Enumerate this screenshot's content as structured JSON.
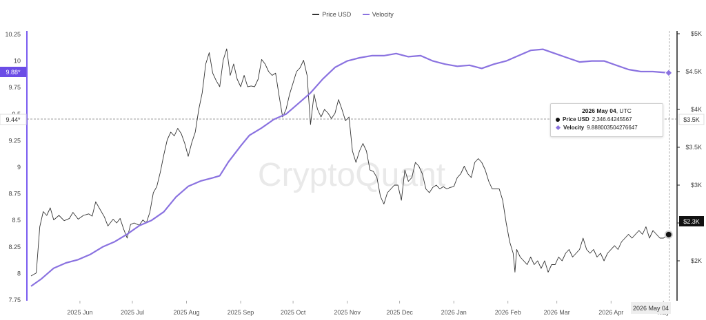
{
  "legend": {
    "price_label": "Price USD",
    "velocity_label": "Velocity",
    "price_color": "#333333",
    "velocity_color": "#8a72e0"
  },
  "watermark": "CryptoQuant",
  "tooltip": {
    "date_bold": "2026 May 04",
    "date_suffix": ", UTC",
    "price_label": "Price USD",
    "price_value": "2,346.64245567",
    "velocity_label": "Velocity",
    "velocity_value": "9.888003504276647"
  },
  "left_axis_markers": {
    "velocity_current": "9.88*",
    "crosshair": "9.44*"
  },
  "right_axis_markers": {
    "price_current": "$2.3K",
    "crosshair": "$3.5K"
  },
  "x_axis_date_badge": "2026 May 04",
  "chart_data": {
    "type": "line",
    "x_ticks": [
      "2025 Jun",
      "2025 Jul",
      "2025 Aug",
      "2025 Sep",
      "2025 Oct",
      "2025 Nov",
      "2025 Dec",
      "2026 Jan",
      "2026 Feb",
      "2026 Mar",
      "2026 Apr",
      "May"
    ],
    "y_left": {
      "ticks": [
        "7.75",
        "8",
        "8.25",
        "8.5",
        "8.75",
        "9",
        "9.25",
        "9.5",
        "9.75",
        "10",
        "10.25"
      ],
      "min": 7.75,
      "max": 10.25
    },
    "y_right": {
      "ticks": [
        "$2K",
        "$2.5K",
        "$3K",
        "$3.5K",
        "$4K",
        "$4.5K",
        "$5K"
      ],
      "min": 1500,
      "max": 5000
    },
    "series": [
      {
        "name": "Price USD",
        "axis": "right",
        "color": "#333333",
        "points": [
          [
            "2025-05-04",
            1800
          ],
          [
            "2025-05-07",
            1840
          ],
          [
            "2025-05-09",
            2450
          ],
          [
            "2025-05-11",
            2650
          ],
          [
            "2025-05-13",
            2600
          ],
          [
            "2025-05-15",
            2700
          ],
          [
            "2025-05-17",
            2540
          ],
          [
            "2025-05-20",
            2600
          ],
          [
            "2025-05-23",
            2530
          ],
          [
            "2025-05-26",
            2560
          ],
          [
            "2025-05-28",
            2640
          ],
          [
            "2025-05-31",
            2550
          ],
          [
            "2025-06-03",
            2600
          ],
          [
            "2025-06-06",
            2620
          ],
          [
            "2025-06-08",
            2590
          ],
          [
            "2025-06-10",
            2780
          ],
          [
            "2025-06-12",
            2700
          ],
          [
            "2025-06-15",
            2580
          ],
          [
            "2025-06-17",
            2460
          ],
          [
            "2025-06-20",
            2550
          ],
          [
            "2025-06-22",
            2500
          ],
          [
            "2025-06-24",
            2560
          ],
          [
            "2025-06-26",
            2420
          ],
          [
            "2025-06-28",
            2300
          ],
          [
            "2025-06-30",
            2480
          ],
          [
            "2025-07-02",
            2500
          ],
          [
            "2025-07-05",
            2470
          ],
          [
            "2025-07-07",
            2540
          ],
          [
            "2025-07-09",
            2500
          ],
          [
            "2025-07-11",
            2640
          ],
          [
            "2025-07-13",
            2900
          ],
          [
            "2025-07-15",
            2980
          ],
          [
            "2025-07-17",
            3170
          ],
          [
            "2025-07-19",
            3400
          ],
          [
            "2025-07-21",
            3600
          ],
          [
            "2025-07-23",
            3700
          ],
          [
            "2025-07-25",
            3650
          ],
          [
            "2025-07-27",
            3750
          ],
          [
            "2025-07-29",
            3680
          ],
          [
            "2025-07-31",
            3550
          ],
          [
            "2025-08-02",
            3380
          ],
          [
            "2025-08-04",
            3560
          ],
          [
            "2025-08-06",
            3700
          ],
          [
            "2025-08-08",
            4000
          ],
          [
            "2025-08-10",
            4220
          ],
          [
            "2025-08-12",
            4600
          ],
          [
            "2025-08-14",
            4750
          ],
          [
            "2025-08-16",
            4480
          ],
          [
            "2025-08-18",
            4380
          ],
          [
            "2025-08-20",
            4300
          ],
          [
            "2025-08-22",
            4650
          ],
          [
            "2025-08-24",
            4800
          ],
          [
            "2025-08-26",
            4450
          ],
          [
            "2025-08-28",
            4600
          ],
          [
            "2025-08-30",
            4400
          ],
          [
            "2025-09-01",
            4300
          ],
          [
            "2025-09-03",
            4450
          ],
          [
            "2025-09-05",
            4300
          ],
          [
            "2025-09-07",
            4310
          ],
          [
            "2025-09-09",
            4300
          ],
          [
            "2025-09-11",
            4400
          ],
          [
            "2025-09-13",
            4660
          ],
          [
            "2025-09-15",
            4600
          ],
          [
            "2025-09-17",
            4500
          ],
          [
            "2025-09-19",
            4450
          ],
          [
            "2025-09-21",
            4480
          ],
          [
            "2025-09-23",
            4180
          ],
          [
            "2025-09-25",
            3900
          ],
          [
            "2025-09-27",
            4000
          ],
          [
            "2025-09-29",
            4200
          ],
          [
            "2025-10-01",
            4350
          ],
          [
            "2025-10-03",
            4500
          ],
          [
            "2025-10-05",
            4550
          ],
          [
            "2025-10-07",
            4650
          ],
          [
            "2025-10-09",
            4450
          ],
          [
            "2025-10-11",
            3800
          ],
          [
            "2025-10-13",
            4200
          ],
          [
            "2025-10-15",
            4000
          ],
          [
            "2025-10-17",
            3900
          ],
          [
            "2025-10-19",
            4000
          ],
          [
            "2025-10-21",
            3950
          ],
          [
            "2025-10-23",
            3880
          ],
          [
            "2025-10-25",
            3950
          ],
          [
            "2025-10-27",
            4130
          ],
          [
            "2025-10-29",
            4000
          ],
          [
            "2025-10-31",
            3850
          ],
          [
            "2025-11-02",
            3900
          ],
          [
            "2025-11-04",
            3450
          ],
          [
            "2025-11-06",
            3300
          ],
          [
            "2025-11-08",
            3450
          ],
          [
            "2025-11-10",
            3550
          ],
          [
            "2025-11-12",
            3450
          ],
          [
            "2025-11-14",
            3200
          ],
          [
            "2025-11-16",
            3180
          ],
          [
            "2025-11-18",
            3100
          ],
          [
            "2025-11-20",
            2850
          ],
          [
            "2025-11-22",
            2750
          ],
          [
            "2025-11-24",
            2900
          ],
          [
            "2025-11-26",
            2950
          ],
          [
            "2025-11-28",
            3000
          ],
          [
            "2025-11-30",
            3000
          ],
          [
            "2025-12-02",
            2800
          ],
          [
            "2025-12-04",
            3200
          ],
          [
            "2025-12-06",
            3050
          ],
          [
            "2025-12-08",
            3100
          ],
          [
            "2025-12-10",
            3300
          ],
          [
            "2025-12-12",
            3250
          ],
          [
            "2025-12-14",
            3150
          ],
          [
            "2025-12-16",
            2950
          ],
          [
            "2025-12-18",
            2900
          ],
          [
            "2025-12-20",
            2970
          ],
          [
            "2025-12-22",
            3000
          ],
          [
            "2025-12-24",
            2950
          ],
          [
            "2025-12-26",
            2980
          ],
          [
            "2025-12-28",
            2950
          ],
          [
            "2025-12-30",
            2970
          ],
          [
            "2026-01-01",
            2980
          ],
          [
            "2026-01-03",
            3100
          ],
          [
            "2026-01-05",
            3150
          ],
          [
            "2026-01-07",
            3250
          ],
          [
            "2026-01-09",
            3150
          ],
          [
            "2026-01-11",
            3100
          ],
          [
            "2026-01-13",
            3300
          ],
          [
            "2026-01-15",
            3350
          ],
          [
            "2026-01-17",
            3300
          ],
          [
            "2026-01-19",
            3200
          ],
          [
            "2026-01-21",
            3050
          ],
          [
            "2026-01-23",
            2950
          ],
          [
            "2026-01-25",
            2950
          ],
          [
            "2026-01-27",
            2950
          ],
          [
            "2026-01-29",
            2800
          ],
          [
            "2026-01-31",
            2500
          ],
          [
            "2026-02-02",
            2250
          ],
          [
            "2026-02-04",
            2100
          ],
          [
            "2026-02-05",
            1850
          ],
          [
            "2026-02-06",
            2150
          ],
          [
            "2026-02-08",
            2050
          ],
          [
            "2026-02-10",
            2000
          ],
          [
            "2026-02-12",
            1950
          ],
          [
            "2026-02-14",
            2050
          ],
          [
            "2026-02-16",
            1950
          ],
          [
            "2026-02-18",
            2000
          ],
          [
            "2026-02-20",
            1900
          ],
          [
            "2026-02-22",
            2000
          ],
          [
            "2026-02-24",
            1850
          ],
          [
            "2026-02-26",
            1950
          ],
          [
            "2026-02-28",
            1950
          ],
          [
            "2026-03-02",
            2050
          ],
          [
            "2026-03-04",
            2000
          ],
          [
            "2026-03-06",
            2100
          ],
          [
            "2026-03-08",
            2150
          ],
          [
            "2026-03-10",
            2050
          ],
          [
            "2026-03-12",
            2100
          ],
          [
            "2026-03-14",
            2150
          ],
          [
            "2026-03-16",
            2300
          ],
          [
            "2026-03-18",
            2150
          ],
          [
            "2026-03-20",
            2100
          ],
          [
            "2026-03-22",
            2150
          ],
          [
            "2026-03-24",
            2050
          ],
          [
            "2026-03-26",
            2100
          ],
          [
            "2026-03-28",
            2000
          ],
          [
            "2026-03-30",
            2100
          ],
          [
            "2026-04-01",
            2150
          ],
          [
            "2026-04-03",
            2200
          ],
          [
            "2026-04-05",
            2150
          ],
          [
            "2026-04-07",
            2250
          ],
          [
            "2026-04-09",
            2300
          ],
          [
            "2026-04-11",
            2350
          ],
          [
            "2026-04-13",
            2300
          ],
          [
            "2026-04-15",
            2350
          ],
          [
            "2026-04-17",
            2400
          ],
          [
            "2026-04-19",
            2350
          ],
          [
            "2026-04-21",
            2450
          ],
          [
            "2026-04-23",
            2300
          ],
          [
            "2026-04-25",
            2400
          ],
          [
            "2026-04-27",
            2350
          ],
          [
            "2026-04-29",
            2300
          ],
          [
            "2026-05-01",
            2300
          ],
          [
            "2026-05-04",
            2347
          ]
        ]
      },
      {
        "name": "Velocity",
        "axis": "left",
        "color": "#8a72e0",
        "points": [
          [
            "2025-05-04",
            7.88
          ],
          [
            "2025-05-10",
            7.95
          ],
          [
            "2025-05-17",
            8.05
          ],
          [
            "2025-05-24",
            8.1
          ],
          [
            "2025-05-31",
            8.13
          ],
          [
            "2025-06-07",
            8.18
          ],
          [
            "2025-06-14",
            8.25
          ],
          [
            "2025-06-21",
            8.3
          ],
          [
            "2025-06-28",
            8.37
          ],
          [
            "2025-07-05",
            8.45
          ],
          [
            "2025-07-12",
            8.5
          ],
          [
            "2025-07-19",
            8.58
          ],
          [
            "2025-07-26",
            8.72
          ],
          [
            "2025-08-02",
            8.82
          ],
          [
            "2025-08-09",
            8.87
          ],
          [
            "2025-08-16",
            8.9
          ],
          [
            "2025-08-20",
            8.92
          ],
          [
            "2025-08-25",
            9.05
          ],
          [
            "2025-09-01",
            9.2
          ],
          [
            "2025-09-06",
            9.3
          ],
          [
            "2025-09-13",
            9.37
          ],
          [
            "2025-09-20",
            9.45
          ],
          [
            "2025-09-27",
            9.5
          ],
          [
            "2025-10-04",
            9.6
          ],
          [
            "2025-10-11",
            9.7
          ],
          [
            "2025-10-18",
            9.83
          ],
          [
            "2025-10-25",
            9.94
          ],
          [
            "2025-11-01",
            10.0
          ],
          [
            "2025-11-08",
            10.03
          ],
          [
            "2025-11-15",
            10.05
          ],
          [
            "2025-11-22",
            10.05
          ],
          [
            "2025-11-29",
            10.07
          ],
          [
            "2025-12-06",
            10.04
          ],
          [
            "2025-12-13",
            10.05
          ],
          [
            "2025-12-20",
            10.0
          ],
          [
            "2025-12-27",
            9.97
          ],
          [
            "2026-01-03",
            9.95
          ],
          [
            "2026-01-10",
            9.96
          ],
          [
            "2026-01-17",
            9.93
          ],
          [
            "2026-01-24",
            9.97
          ],
          [
            "2026-01-31",
            10.0
          ],
          [
            "2026-02-07",
            10.05
          ],
          [
            "2026-02-14",
            10.1
          ],
          [
            "2026-02-21",
            10.11
          ],
          [
            "2026-02-28",
            10.07
          ],
          [
            "2026-03-07",
            10.03
          ],
          [
            "2026-03-14",
            9.99
          ],
          [
            "2026-03-21",
            10.0
          ],
          [
            "2026-03-28",
            10.0
          ],
          [
            "2026-04-04",
            9.96
          ],
          [
            "2026-04-11",
            9.92
          ],
          [
            "2026-04-18",
            9.9
          ],
          [
            "2026-04-25",
            9.9
          ],
          [
            "2026-05-04",
            9.888
          ]
        ]
      }
    ],
    "grid": false,
    "legend_position": "top-center"
  }
}
